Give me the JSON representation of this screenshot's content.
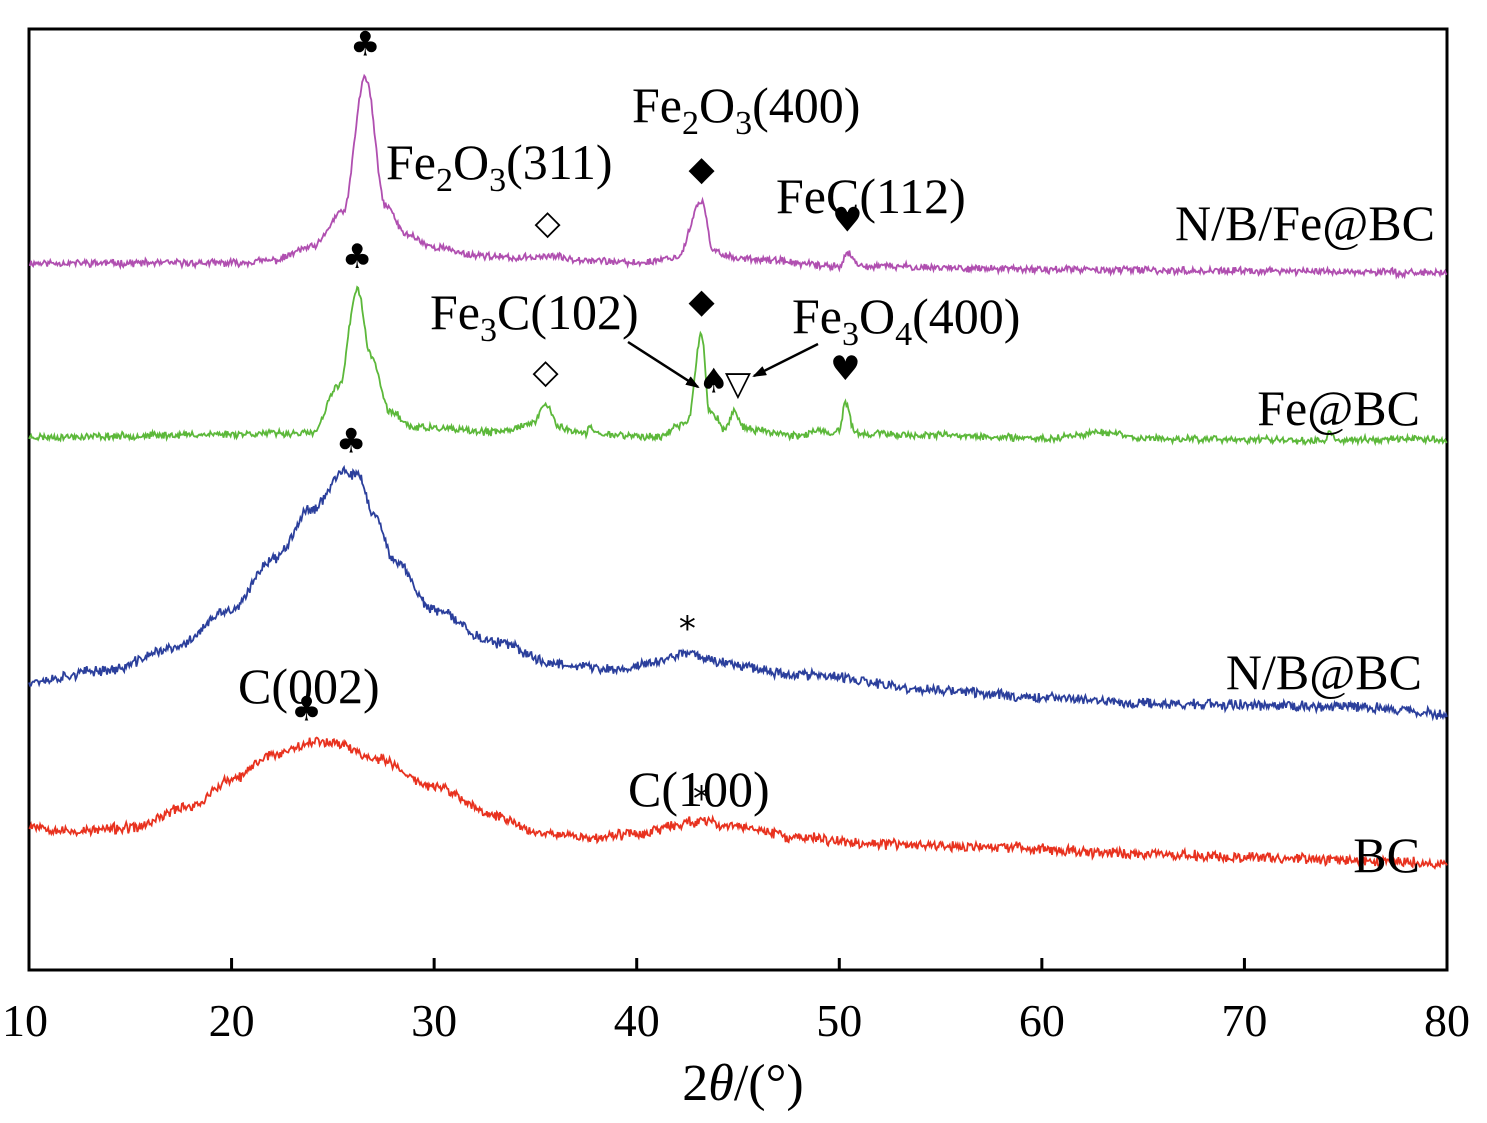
{
  "chart_data": {
    "type": "line",
    "title": "",
    "xlabel_prefix": "2",
    "xlabel_theta": "θ",
    "xlabel_suffix": "/(°)",
    "ylabel": "",
    "xlim": [
      10,
      80
    ],
    "xticks": [
      10,
      20,
      30,
      40,
      50,
      60,
      70,
      80
    ],
    "grid": false,
    "series": [
      {
        "name": "N/B/Fe@BC",
        "color": "#b04fb0",
        "noise": 0.09,
        "seed": 11,
        "points": [
          [
            10,
            0.0
          ],
          [
            20,
            0.0
          ],
          [
            22,
            0.08
          ],
          [
            24,
            0.5
          ],
          [
            25.5,
            1.6
          ],
          [
            26.6,
            5.8
          ],
          [
            27.6,
            1.8
          ],
          [
            28.6,
            0.9
          ],
          [
            30,
            0.5
          ],
          [
            32,
            0.25
          ],
          [
            34,
            0.15
          ],
          [
            35.6,
            0.22
          ],
          [
            37,
            0.12
          ],
          [
            40,
            0.0
          ],
          [
            42,
            0.18
          ],
          [
            43.2,
            1.9
          ],
          [
            43.8,
            0.35
          ],
          [
            45,
            0.15
          ],
          [
            50,
            -0.1
          ],
          [
            50.4,
            0.3
          ],
          [
            51,
            -0.1
          ],
          [
            60,
            -0.2
          ],
          [
            70,
            -0.25
          ],
          [
            80,
            -0.3
          ]
        ]
      },
      {
        "name": "Fe@BC",
        "color": "#5cb83a",
        "noise": 0.09,
        "seed": 23,
        "points": [
          [
            10,
            0.0
          ],
          [
            24,
            0.12
          ],
          [
            25.3,
            1.6
          ],
          [
            26.2,
            4.6
          ],
          [
            26.9,
            2.5
          ],
          [
            27.8,
            0.8
          ],
          [
            29,
            0.3
          ],
          [
            33,
            0.15
          ],
          [
            34.8,
            0.4
          ],
          [
            35.5,
            1.0
          ],
          [
            36.2,
            0.3
          ],
          [
            37.5,
            0.1
          ],
          [
            37.7,
            0.35
          ],
          [
            38,
            0.1
          ],
          [
            41,
            0.0
          ],
          [
            42.5,
            0.45
          ],
          [
            43.2,
            3.2
          ],
          [
            43.6,
            0.8
          ],
          [
            44,
            0.6
          ],
          [
            44.3,
            0.2
          ],
          [
            44.8,
            0.8
          ],
          [
            45.3,
            0.3
          ],
          [
            46,
            0.2
          ],
          [
            48,
            0.05
          ],
          [
            49,
            0.2
          ],
          [
            49.5,
            0.05
          ],
          [
            50,
            0.2
          ],
          [
            50.3,
            1.1
          ],
          [
            50.8,
            0.1
          ],
          [
            55,
            0.05
          ],
          [
            60,
            -0.05
          ],
          [
            63,
            0.15
          ],
          [
            65,
            -0.05
          ],
          [
            74,
            -0.1
          ],
          [
            74.2,
            0.2
          ],
          [
            74.5,
            -0.1
          ],
          [
            78,
            -0.05
          ],
          [
            80,
            -0.1
          ]
        ]
      },
      {
        "name": "N/B@BC",
        "color": "#2b3f9c",
        "noise": 0.13,
        "seed": 37,
        "points": [
          [
            10,
            0.0
          ],
          [
            14,
            0.35
          ],
          [
            17,
            1.0
          ],
          [
            20,
            2.2
          ],
          [
            22,
            3.8
          ],
          [
            24,
            5.4
          ],
          [
            25.5,
            6.5
          ],
          [
            26.3,
            6.4
          ],
          [
            27,
            5.2
          ],
          [
            28,
            3.8
          ],
          [
            30,
            2.2
          ],
          [
            33,
            1.2
          ],
          [
            36,
            0.55
          ],
          [
            39,
            0.35
          ],
          [
            41,
            0.6
          ],
          [
            42.5,
            0.9
          ],
          [
            44,
            0.6
          ],
          [
            48,
            0.2
          ],
          [
            55,
            -0.3
          ],
          [
            60,
            -0.5
          ],
          [
            65,
            -0.7
          ],
          [
            70,
            -0.75
          ],
          [
            75,
            -0.8
          ],
          [
            78,
            -0.9
          ],
          [
            80,
            -1.1
          ]
        ]
      },
      {
        "name": "BC",
        "color": "#e8321f",
        "noise": 0.13,
        "seed": 53,
        "points": [
          [
            10,
            0.0
          ],
          [
            12,
            -0.2
          ],
          [
            15,
            -0.1
          ],
          [
            18,
            0.6
          ],
          [
            20,
            1.4
          ],
          [
            22,
            2.2
          ],
          [
            24,
            2.6
          ],
          [
            25,
            2.6
          ],
          [
            27,
            2.1
          ],
          [
            30,
            1.2
          ],
          [
            33,
            0.3
          ],
          [
            35,
            -0.2
          ],
          [
            38,
            -0.4
          ],
          [
            40,
            -0.25
          ],
          [
            43,
            0.1
          ],
          [
            45,
            -0.05
          ],
          [
            48,
            -0.4
          ],
          [
            52,
            -0.6
          ],
          [
            58,
            -0.7
          ],
          [
            65,
            -0.9
          ],
          [
            70,
            -1.0
          ],
          [
            75,
            -1.1
          ],
          [
            80,
            -1.2
          ]
        ]
      }
    ],
    "annotations": {
      "peak_labels": [
        {
          "series": "N/B/Fe@BC",
          "x": 26.6,
          "symbol": "♣"
        },
        {
          "series": "N/B/Fe@BC",
          "x": 35.6,
          "symbol": "◇"
        },
        {
          "series": "N/B/Fe@BC",
          "x": 43.2,
          "symbol": "◆"
        },
        {
          "series": "N/B/Fe@BC",
          "x": 50.4,
          "symbol": "♥"
        },
        {
          "series": "Fe@BC",
          "x": 26.2,
          "symbol": "♣"
        },
        {
          "series": "Fe@BC",
          "x": 35.5,
          "symbol": "◇"
        },
        {
          "series": "Fe@BC",
          "x": 43.2,
          "symbol": "◆"
        },
        {
          "series": "Fe@BC",
          "x": 43.8,
          "symbol": "♠"
        },
        {
          "series": "Fe@BC",
          "x": 45.0,
          "symbol": "▽"
        },
        {
          "series": "Fe@BC",
          "x": 50.3,
          "symbol": "♥"
        },
        {
          "series": "N/B@BC",
          "x": 25.9,
          "symbol": "♣"
        },
        {
          "series": "N/B@BC",
          "x": 42.5,
          "symbol": "*"
        },
        {
          "series": "BC",
          "x": 23.7,
          "symbol": "♣"
        },
        {
          "series": "BC",
          "x": 43.2,
          "symbol": "*"
        }
      ],
      "phase_labels": [
        {
          "id": "fe2o3_311",
          "element": "Fe",
          "sub1": "2",
          "mid": "O",
          "sub2": "3",
          "rest": "(311)"
        },
        {
          "id": "fe2o3_400",
          "element": "Fe",
          "sub1": "2",
          "mid": "O",
          "sub2": "3",
          "rest": "(400)"
        },
        {
          "id": "fec_112",
          "text": "FeC(112)"
        },
        {
          "id": "fe3c_102",
          "element": "Fe",
          "sub1": "3",
          "mid": "C",
          "sub2": "",
          "rest": "(102)"
        },
        {
          "id": "fe3o4_400",
          "element": "Fe",
          "sub1": "3",
          "mid": "O",
          "sub2": "4",
          "rest": "(400)"
        },
        {
          "id": "c_002",
          "text": "C(002)"
        },
        {
          "id": "c_100",
          "text": "C(100)"
        }
      ]
    }
  }
}
